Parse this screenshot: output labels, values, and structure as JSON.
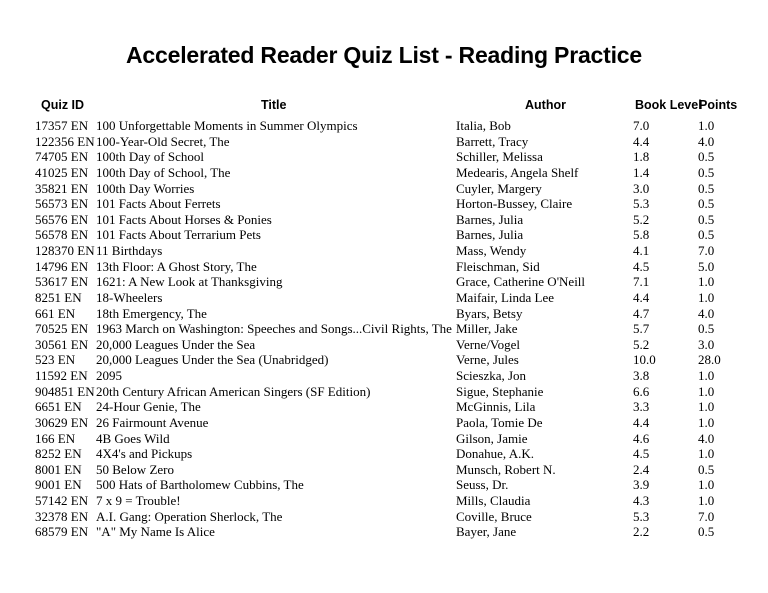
{
  "page_title": "Accelerated Reader Quiz List - Reading Practice",
  "headers": {
    "quiz_id": "Quiz ID",
    "title": "Title",
    "author": "Author",
    "book_level": "Book Level",
    "points": "Points"
  },
  "rows": [
    [
      "17357 EN",
      "100 Unforgettable Moments in Summer Olympics",
      "Italia, Bob",
      "7.0",
      "1.0"
    ],
    [
      "122356 EN",
      "100-Year-Old Secret, The",
      "Barrett, Tracy",
      "4.4",
      "4.0"
    ],
    [
      "74705 EN",
      "100th Day of School",
      "Schiller, Melissa",
      "1.8",
      "0.5"
    ],
    [
      "41025 EN",
      "100th Day of School, The",
      "Medearis, Angela Shelf",
      "1.4",
      "0.5"
    ],
    [
      "35821 EN",
      "100th Day Worries",
      "Cuyler, Margery",
      "3.0",
      "0.5"
    ],
    [
      "56573 EN",
      "101 Facts About Ferrets",
      "Horton-Bussey, Claire",
      "5.3",
      "0.5"
    ],
    [
      "56576 EN",
      "101 Facts About Horses & Ponies",
      "Barnes, Julia",
      "5.2",
      "0.5"
    ],
    [
      "56578 EN",
      "101 Facts About Terrarium Pets",
      "Barnes, Julia",
      "5.8",
      "0.5"
    ],
    [
      "128370 EN",
      "11 Birthdays",
      "Mass, Wendy",
      "4.1",
      "7.0"
    ],
    [
      "14796 EN",
      "13th Floor: A Ghost Story, The",
      "Fleischman, Sid",
      "4.5",
      "5.0"
    ],
    [
      "53617 EN",
      "1621: A New Look at Thanksgiving",
      "Grace, Catherine O'Neill",
      "7.1",
      "1.0"
    ],
    [
      "8251 EN",
      "18-Wheelers",
      "Maifair, Linda Lee",
      "4.4",
      "1.0"
    ],
    [
      "661 EN",
      "18th Emergency, The",
      "Byars, Betsy",
      "4.7",
      "4.0"
    ],
    [
      "70525 EN",
      "1963 March on Washington: Speeches and Songs...Civil Rights, The",
      "Miller, Jake",
      "5.7",
      "0.5"
    ],
    [
      "30561 EN",
      "20,000 Leagues Under the Sea",
      "Verne/Vogel",
      "5.2",
      "3.0"
    ],
    [
      "523 EN",
      "20,000 Leagues Under the Sea (Unabridged)",
      "Verne, Jules",
      "10.0",
      "28.0"
    ],
    [
      "11592 EN",
      "2095",
      "Scieszka, Jon",
      "3.8",
      "1.0"
    ],
    [
      "904851 EN",
      "20th Century African American Singers (SF Edition)",
      "Sigue, Stephanie",
      "6.6",
      "1.0"
    ],
    [
      "6651 EN",
      "24-Hour Genie, The",
      "McGinnis, Lila",
      "3.3",
      "1.0"
    ],
    [
      "30629 EN",
      "26 Fairmount Avenue",
      "Paola, Tomie De",
      "4.4",
      "1.0"
    ],
    [
      "166 EN",
      "4B Goes Wild",
      "Gilson, Jamie",
      "4.6",
      "4.0"
    ],
    [
      "8252 EN",
      "4X4's and Pickups",
      "Donahue, A.K.",
      "4.5",
      "1.0"
    ],
    [
      "8001 EN",
      "50 Below Zero",
      "Munsch, Robert N.",
      "2.4",
      "0.5"
    ],
    [
      "9001 EN",
      "500 Hats of Bartholomew Cubbins, The",
      "Seuss, Dr.",
      "3.9",
      "1.0"
    ],
    [
      "57142 EN",
      "7 x 9 = Trouble!",
      "Mills, Claudia",
      "4.3",
      "1.0"
    ],
    [
      "32378 EN",
      "A.I. Gang: Operation Sherlock, The",
      "Coville, Bruce",
      "5.3",
      "7.0"
    ],
    [
      "68579 EN",
      "\"A\" My Name Is Alice",
      "Bayer, Jane",
      "2.2",
      "0.5"
    ]
  ]
}
